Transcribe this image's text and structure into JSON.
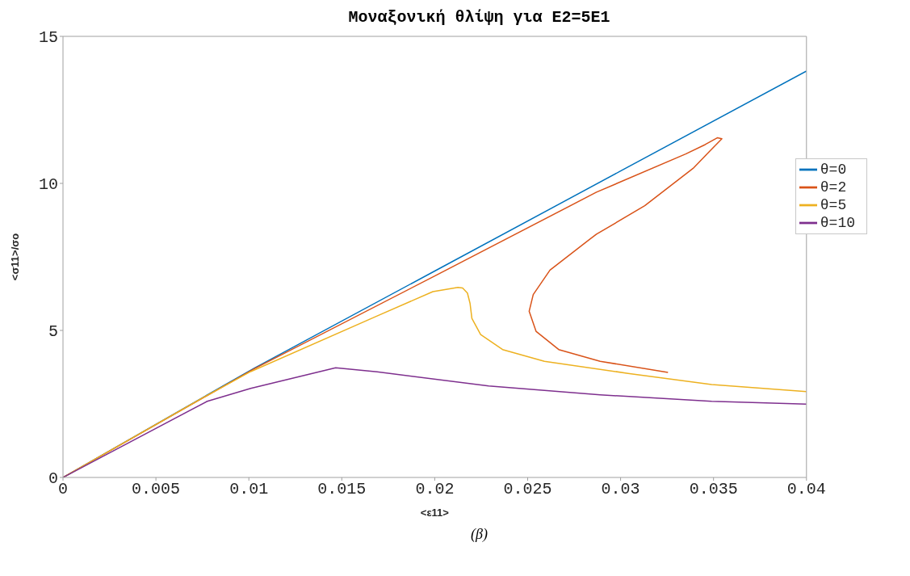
{
  "chart_data": {
    "type": "line",
    "title": "Μοναξονική θλίψη για E2=5E1",
    "xlabel": "<ε11>",
    "ylabel": "<σ11>/σo",
    "annotations": [
      "(β)"
    ],
    "xlim": [
      0,
      0.04
    ],
    "xticks": [
      0,
      0.005,
      0.01,
      0.015,
      0.02,
      0.025,
      0.03,
      0.035,
      0.04
    ],
    "ylim": [
      0,
      15
    ],
    "yticks": [
      0,
      5,
      10,
      15
    ],
    "grid": false,
    "legend": "right",
    "marker": "none",
    "line_style": "solid",
    "series": [
      {
        "name": "θ=0",
        "color": "#0072bd",
        "x": [
          0,
          0.0103,
          0.02,
          0.03,
          0.04
        ],
        "values": [
          0,
          3.72,
          7.02,
          10.42,
          13.82
        ]
      },
      {
        "name": "θ=2",
        "color": "#d95319",
        "x": [
          0,
          0.0103,
          0.02,
          0.0287,
          0.0335,
          0.03455,
          0.0352,
          0.03545,
          0.0348,
          0.0339,
          0.0313,
          0.0287,
          0.0283,
          0.0262,
          0.0253,
          0.02508,
          0.02545,
          0.02667,
          0.0289,
          0.03255
        ],
        "values": [
          0,
          3.7,
          6.85,
          9.7,
          11.0,
          11.32,
          11.55,
          11.52,
          11.1,
          10.51,
          9.24,
          8.27,
          8.08,
          7.05,
          6.22,
          5.65,
          4.97,
          4.35,
          3.95,
          3.57
        ]
      },
      {
        "name": "θ=5",
        "color": "#edb120",
        "x": [
          0,
          0.0075,
          0.0101,
          0.0169,
          0.0199,
          0.02125,
          0.0215,
          0.02176,
          0.0219,
          0.022,
          0.02247,
          0.02365,
          0.0259,
          0.0304,
          0.0349,
          0.04
        ],
        "values": [
          0,
          2.7,
          3.6,
          5.49,
          6.32,
          6.46,
          6.44,
          6.27,
          5.92,
          5.41,
          4.86,
          4.35,
          3.95,
          3.54,
          3.16,
          2.92
        ]
      },
      {
        "name": "θ=10",
        "color": "#7e2f8e",
        "x": [
          0,
          0.00776,
          0.0101,
          0.01467,
          0.0169,
          0.0229,
          0.0289,
          0.0349,
          0.04
        ],
        "values": [
          0,
          2.59,
          3.03,
          3.73,
          3.59,
          3.11,
          2.81,
          2.59,
          2.49
        ]
      }
    ]
  }
}
